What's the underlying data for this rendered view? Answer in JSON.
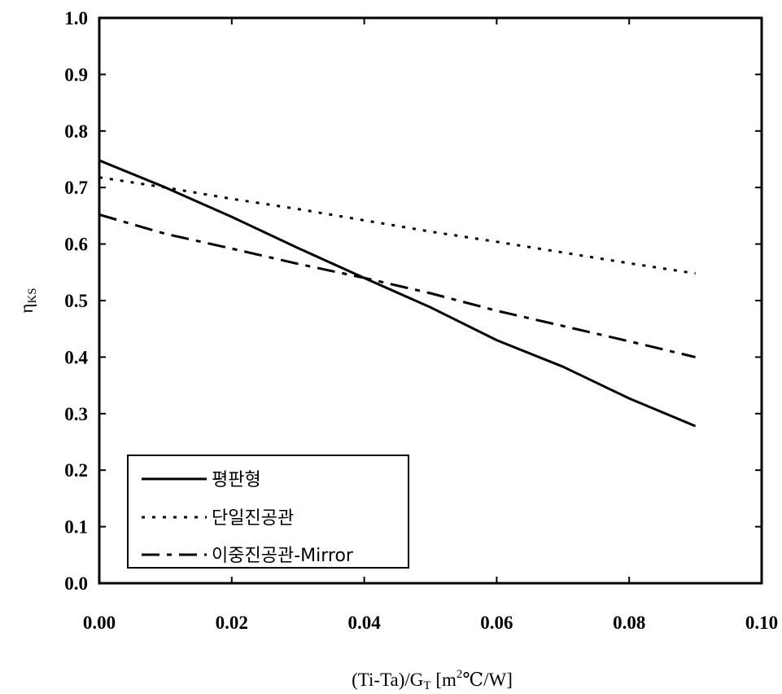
{
  "chart_data": {
    "type": "line",
    "title": "",
    "xlabel_parts": [
      "(Ti-Ta)/G",
      "T",
      " [m",
      "2",
      "℃/W]"
    ],
    "ylabel_parts": [
      "η",
      "KS"
    ],
    "xlim": [
      0.0,
      0.1
    ],
    "ylim": [
      0.0,
      1.0
    ],
    "x_ticks": [
      "0.00",
      "0.02",
      "0.04",
      "0.06",
      "0.08",
      "0.10"
    ],
    "x_tick_values": [
      0.0,
      0.02,
      0.04,
      0.06,
      0.08,
      0.1
    ],
    "y_ticks": [
      "0.0",
      "0.1",
      "0.2",
      "0.3",
      "0.4",
      "0.5",
      "0.6",
      "0.7",
      "0.8",
      "0.9",
      "1.0"
    ],
    "y_tick_values": [
      0.0,
      0.1,
      0.2,
      0.3,
      0.4,
      0.5,
      0.6,
      0.7,
      0.8,
      0.9,
      1.0
    ],
    "grid": false,
    "legend_position": "bottom-left",
    "series": [
      {
        "name": "평판형",
        "style": "solid",
        "color": "#000000",
        "x": [
          0.0,
          0.01,
          0.02,
          0.03,
          0.04,
          0.05,
          0.06,
          0.07,
          0.08,
          0.09
        ],
        "y": [
          0.748,
          0.7,
          0.648,
          0.593,
          0.54,
          0.488,
          0.43,
          0.383,
          0.327,
          0.278
        ]
      },
      {
        "name": "단일진공관",
        "style": "dotted",
        "color": "#000000",
        "x": [
          0.0,
          0.01,
          0.02,
          0.03,
          0.04,
          0.05,
          0.06,
          0.07,
          0.08,
          0.09
        ],
        "y": [
          0.718,
          0.7,
          0.68,
          0.662,
          0.642,
          0.622,
          0.604,
          0.585,
          0.566,
          0.548
        ]
      },
      {
        "name": "이중진공관-Mirror",
        "style": "dashdot",
        "color": "#000000",
        "x": [
          0.0,
          0.01,
          0.02,
          0.03,
          0.04,
          0.05,
          0.06,
          0.07,
          0.08,
          0.09
        ],
        "y": [
          0.652,
          0.618,
          0.592,
          0.565,
          0.54,
          0.513,
          0.482,
          0.455,
          0.428,
          0.4
        ]
      }
    ]
  }
}
